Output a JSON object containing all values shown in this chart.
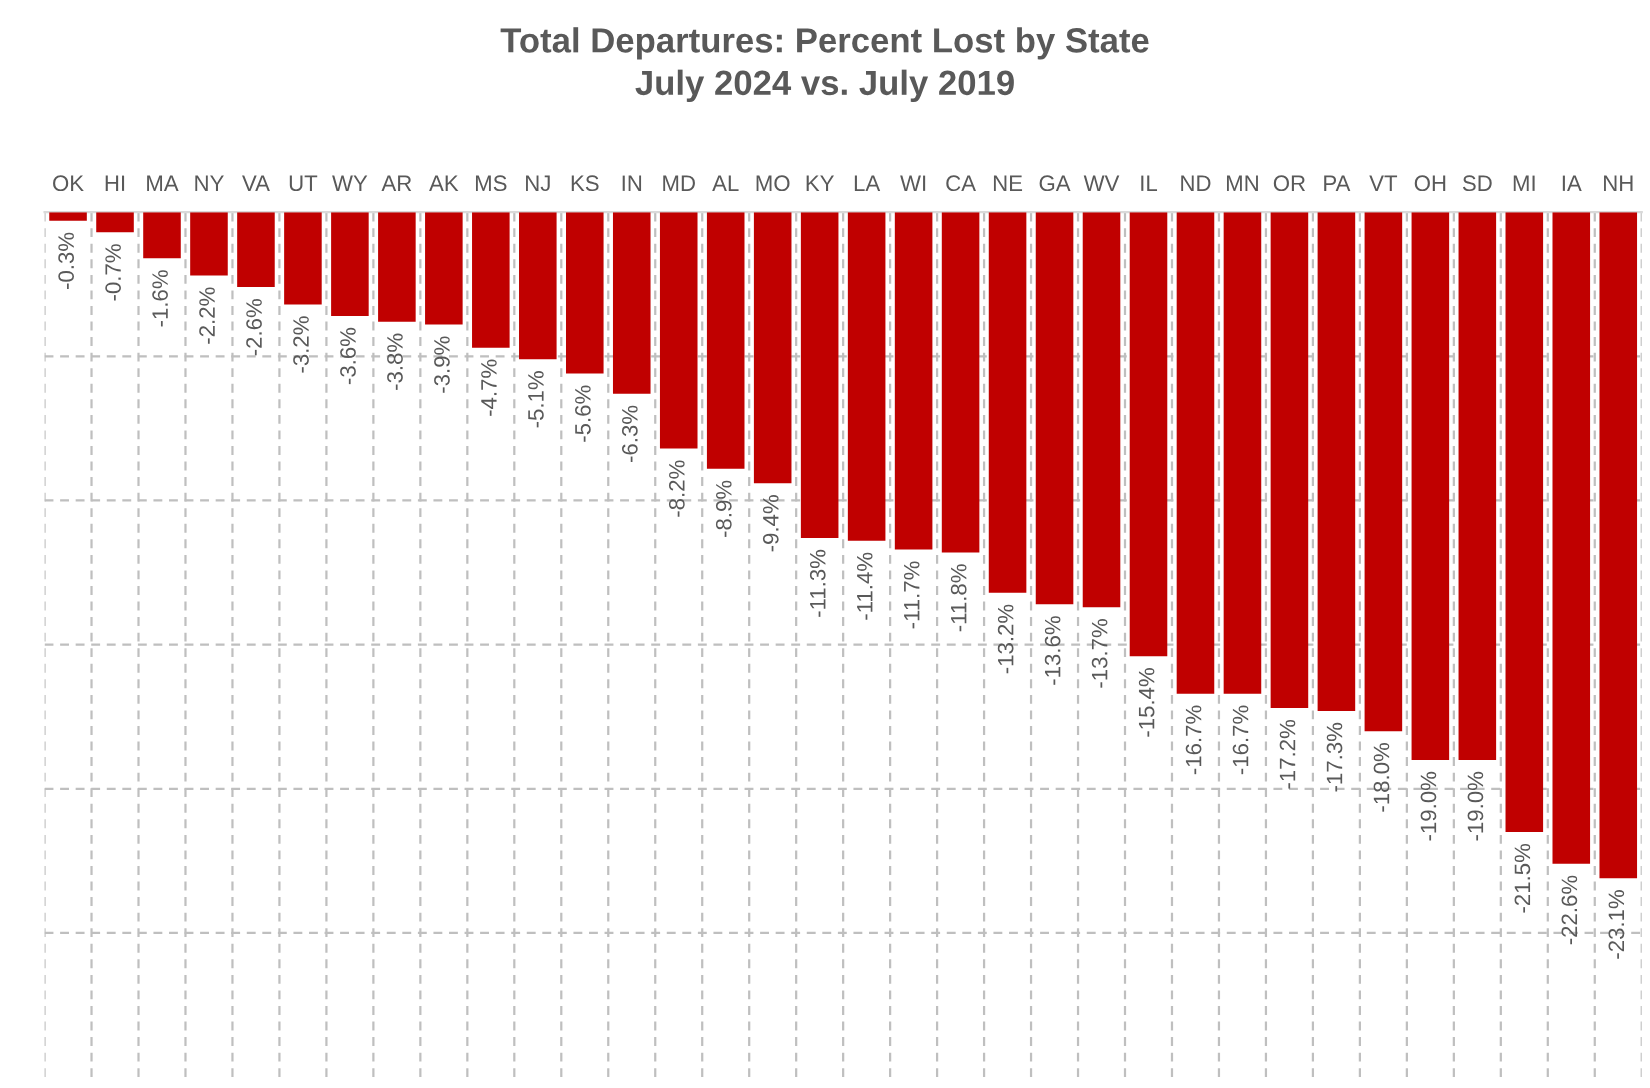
{
  "chart_data": {
    "type": "bar",
    "title": "Total Departures: Percent Lost by State\nJuly 2024 vs. July 2019",
    "categories": [
      "OK",
      "HI",
      "MA",
      "NY",
      "VA",
      "UT",
      "WY",
      "AR",
      "AK",
      "MS",
      "NJ",
      "KS",
      "IN",
      "MD",
      "AL",
      "MO",
      "KY",
      "LA",
      "WI",
      "CA",
      "NE",
      "GA",
      "WV",
      "IL",
      "ND",
      "MN",
      "OR",
      "PA",
      "VT",
      "OH",
      "SD",
      "MI",
      "IA",
      "NH"
    ],
    "values": [
      -0.3,
      -0.7,
      -1.6,
      -2.2,
      -2.6,
      -3.2,
      -3.6,
      -3.8,
      -3.9,
      -4.7,
      -5.1,
      -5.6,
      -6.3,
      -8.2,
      -8.9,
      -9.4,
      -11.3,
      -11.4,
      -11.7,
      -11.8,
      -13.2,
      -13.6,
      -13.7,
      -15.4,
      -16.7,
      -16.7,
      -17.2,
      -17.3,
      -18.0,
      -19.0,
      -19.0,
      -21.5,
      -22.6,
      -23.1
    ],
    "value_labels": [
      "-0.3%",
      "-0.7%",
      "-1.6%",
      "-2.2%",
      "-2.6%",
      "-3.2%",
      "-3.6%",
      "-3.8%",
      "-3.9%",
      "-4.7%",
      "-5.1%",
      "-5.6%",
      "-6.3%",
      "-8.2%",
      "-8.9%",
      "-9.4%",
      "-11.3%",
      "-11.4%",
      "-11.7%",
      "-11.8%",
      "-13.2%",
      "-13.6%",
      "-13.7%",
      "-15.4%",
      "-16.7%",
      "-16.7%",
      "-17.2%",
      "-17.3%",
      "-18.0%",
      "-19.0%",
      "-19.0%",
      "-21.5%",
      "-22.6%",
      "-23.1%"
    ],
    "color": "#c00000",
    "ylim": [
      -30,
      0
    ],
    "yticks": [
      {
        "value": -5,
        "label": null
      },
      {
        "value": -10,
        "label": null
      },
      {
        "value": -15,
        "label": null
      },
      {
        "value": -20,
        "label": null
      },
      {
        "value": -25,
        "label": null
      }
    ],
    "tick_labels": "x",
    "grid": true
  }
}
